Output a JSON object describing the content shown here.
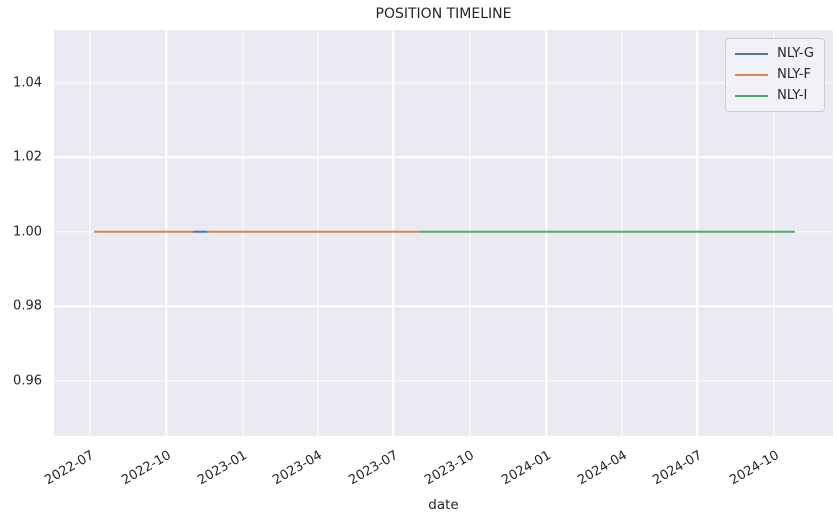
{
  "figure": {
    "background": "#ffffff",
    "plot_background": "#eaeaf2",
    "grid_color": "#ffffff",
    "text_color": "#262626"
  },
  "chart_data": {
    "type": "line",
    "title": "POSITION TIMELINE",
    "xlabel": "date",
    "ylabel": "",
    "grid": true,
    "legend_position": "upper right",
    "x_domain": [
      "2022-05-19",
      "2024-12-11"
    ],
    "ylim": [
      0.9452,
      1.0542
    ],
    "y_ticks": [
      {
        "value": 1.04,
        "label": "1.04"
      },
      {
        "value": 1.02,
        "label": "1.02"
      },
      {
        "value": 1.0,
        "label": "1.00"
      },
      {
        "value": 0.98,
        "label": "0.98"
      },
      {
        "value": 0.96,
        "label": "0.96"
      }
    ],
    "x_ticks": [
      {
        "date": "2022-07-01",
        "label": "2022-07"
      },
      {
        "date": "2022-10-01",
        "label": "2022-10"
      },
      {
        "date": "2023-01-01",
        "label": "2023-01"
      },
      {
        "date": "2023-04-01",
        "label": "2023-04"
      },
      {
        "date": "2023-07-01",
        "label": "2023-07"
      },
      {
        "date": "2023-10-01",
        "label": "2023-10"
      },
      {
        "date": "2024-01-01",
        "label": "2024-01"
      },
      {
        "date": "2024-04-01",
        "label": "2024-04"
      },
      {
        "date": "2024-07-01",
        "label": "2024-07"
      },
      {
        "date": "2024-10-01",
        "label": "2024-10"
      }
    ],
    "series": [
      {
        "name": "NLY-G",
        "color": "#4C72B0",
        "value": 1.0,
        "segments": [
          {
            "start": "2022-11-02",
            "end": "2022-11-19"
          }
        ]
      },
      {
        "name": "NLY-F",
        "color": "#DD8452",
        "value": 1.0,
        "segments": [
          {
            "start": "2022-07-06",
            "end": "2022-11-02"
          },
          {
            "start": "2022-11-19",
            "end": "2023-08-02"
          }
        ]
      },
      {
        "name": "NLY-I",
        "color": "#55A868",
        "value": 1.0,
        "segments": [
          {
            "start": "2023-08-02",
            "end": "2024-10-26"
          }
        ]
      }
    ]
  }
}
